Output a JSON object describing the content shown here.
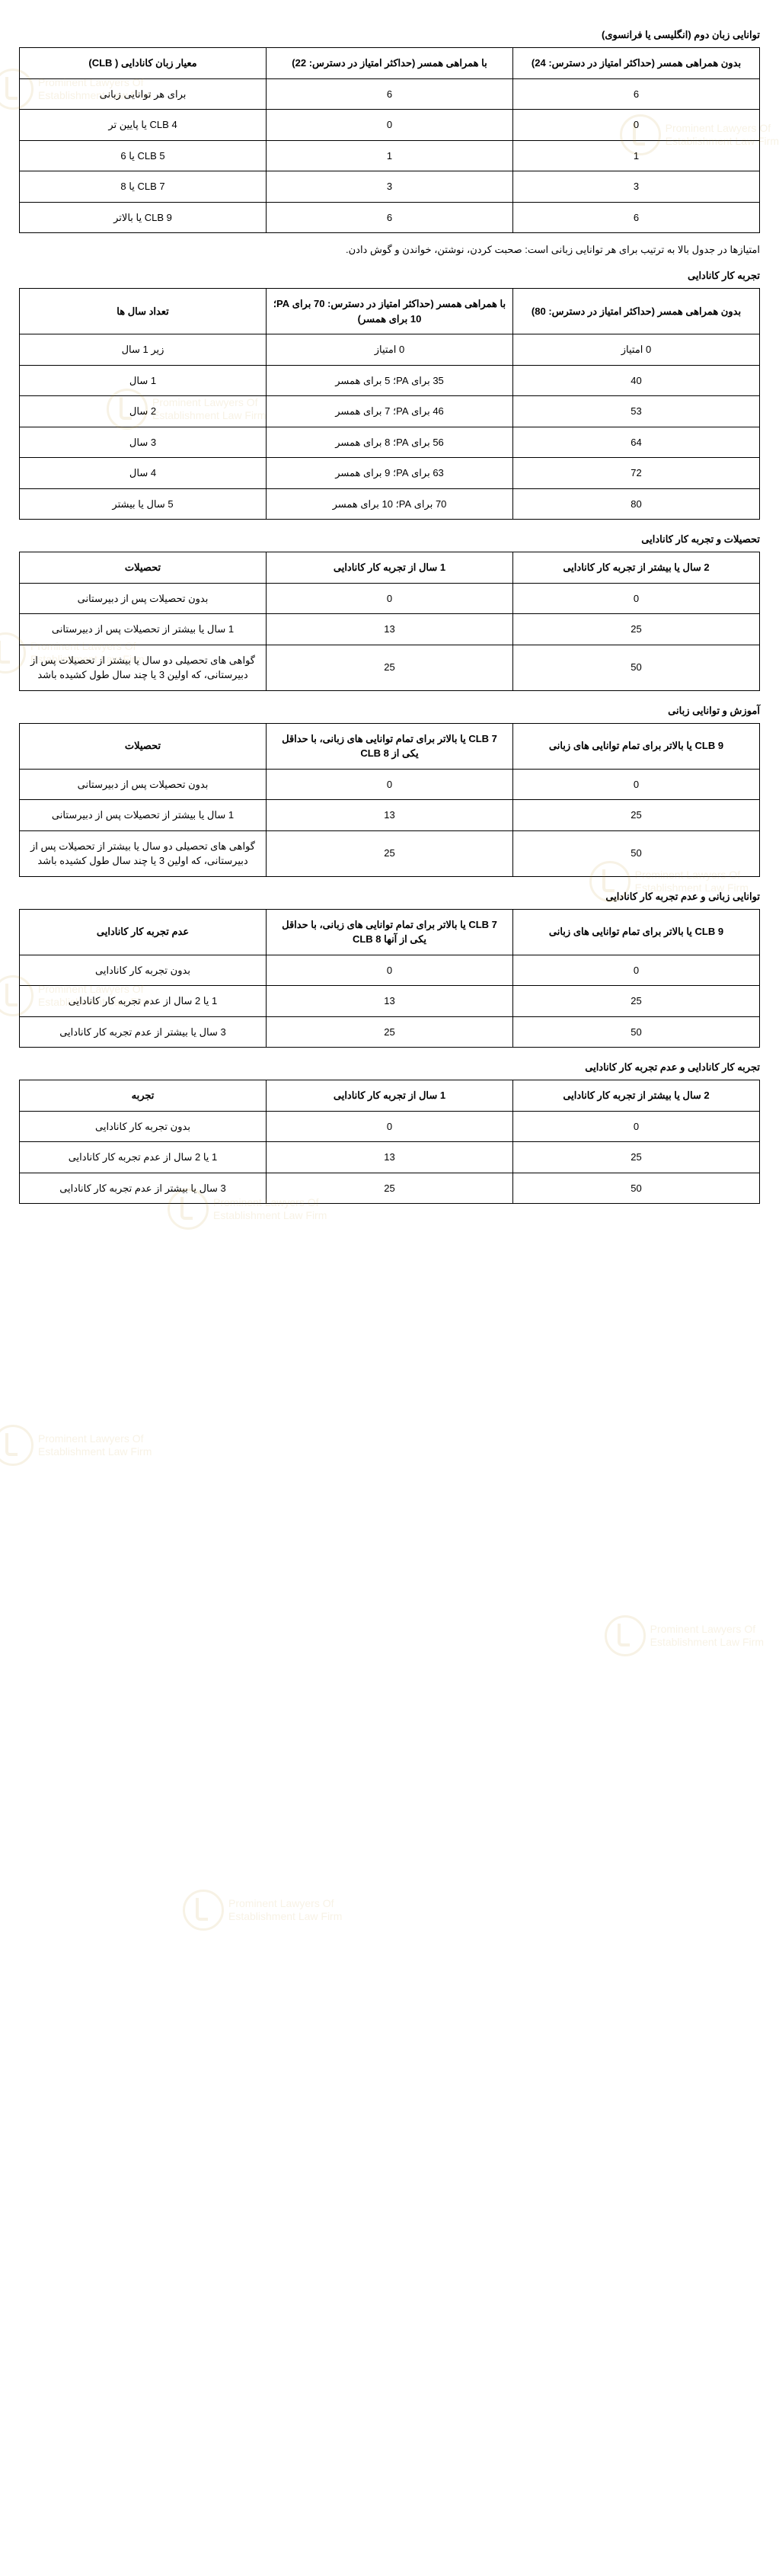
{
  "watermark": {
    "line1": "Prominent Lawyers Of",
    "line2": "Establishment Law Firm"
  },
  "table1": {
    "title": "توانایی زبان دوم (انگلیسی یا فرانسوی)",
    "headers": [
      "بدون همراهی همسر (حداکثر امتیاز در دسترس: 24)",
      "با همراهی همسر (حداکثر امتیاز در دسترس: 22)",
      "معیار زبان کانادایی ( CLB)"
    ],
    "rows": [
      [
        "6",
        "6",
        "برای هر توانایی زبانی"
      ],
      [
        "0",
        "0",
        "CLB 4 یا پایین تر"
      ],
      [
        "1",
        "1",
        "CLB 5 یا 6"
      ],
      [
        "3",
        "3",
        "CLB 7 یا 8"
      ],
      [
        "6",
        "6",
        "CLB 9 یا بالاتر"
      ]
    ]
  },
  "note1": "امتیازها در جدول بالا به ترتیب برای هر توانایی زبانی است: صحبت کردن، نوشتن، خواندن و گوش دادن.",
  "table2": {
    "title": "تجربه کار کانادایی",
    "headers": [
      "بدون همراهی همسر (حداکثر امتیاز در دسترس: 80)",
      "با همراهی همسر (حداکثر امتیاز در دسترس: 70 برای PA؛ 10 برای همسر)",
      "تعداد سال ها"
    ],
    "rows": [
      [
        "0 امتیاز",
        "0 امتیاز",
        "زیر 1 سال"
      ],
      [
        "40",
        "35 برای PA؛ 5 برای همسر",
        "1 سال"
      ],
      [
        "53",
        "46 برای PA؛ 7 برای همسر",
        "2 سال"
      ],
      [
        "64",
        "56 برای PA؛ 8 برای همسر",
        "3 سال"
      ],
      [
        "72",
        "63 برای PA؛ 9 برای همسر",
        "4 سال"
      ],
      [
        "80",
        "70 برای PA؛ 10 برای همسر",
        "5 سال یا بیشتر"
      ]
    ]
  },
  "table3": {
    "title": "تحصیلات و تجربه کار کانادایی",
    "headers": [
      "2 سال یا بیشتر از تجربه کار کانادایی",
      "1 سال از تجربه کار کانادایی",
      "تحصیلات"
    ],
    "rows": [
      [
        "0",
        "0",
        "بدون تحصیلات پس از دبیرستانی"
      ],
      [
        "25",
        "13",
        "1 سال یا بیشتر از تحصیلات پس از دبیرستانی"
      ],
      [
        "50",
        "25",
        "گواهی های تحصیلی دو سال یا بیشتر از تحصیلات پس از دبیرستانی، که اولین 3 یا چند سال طول کشیده باشد"
      ]
    ]
  },
  "table4": {
    "title": "آموزش و توانایی زبانی",
    "headers": [
      "CLB 9 یا بالاتر برای تمام توانایی های زبانی",
      "CLB 7 یا بالاتر برای تمام توانایی های زبانی، با حداقل یکی از CLB 8",
      "تحصیلات"
    ],
    "rows": [
      [
        "0",
        "0",
        "بدون تحصیلات پس از دبیرستانی"
      ],
      [
        "25",
        "13",
        "1 سال یا بیشتر از تحصیلات پس از دبیرستانی"
      ],
      [
        "50",
        "25",
        "گواهی های تحصیلی دو سال یا بیشتر از تحصیلات پس از دبیرستانی، که اولین 3 یا چند سال طول کشیده باشد"
      ]
    ]
  },
  "table5": {
    "title": "توانایی زبانی و عدم تجربه کار کانادایی",
    "headers": [
      "CLB 9 یا بالاتر برای تمام توانایی های زبانی",
      "CLB 7 یا بالاتر برای تمام توانایی های زبانی، با حداقل یکی از آنها CLB 8",
      "عدم تجربه کار کانادایی"
    ],
    "rows": [
      [
        "0",
        "0",
        "بدون تجربه کار کانادایی"
      ],
      [
        "25",
        "13",
        "1 یا 2 سال از عدم تجربه کار کانادایی"
      ],
      [
        "50",
        "25",
        "3 سال یا بیشتر از عدم تجربه کار کانادایی"
      ]
    ]
  },
  "table6": {
    "title": "تجربه کار کانادایی و عدم تجربه کار کانادایی",
    "headers": [
      "2 سال یا بیشتر از تجربه کار کانادایی",
      "1 سال از تجربه کار کانادایی",
      "تجربه"
    ],
    "rows": [
      [
        "0",
        "0",
        "بدون تجربه کار کانادایی"
      ],
      [
        "25",
        "13",
        "1 یا 2 سال از عدم تجربه کار کانادایی"
      ],
      [
        "50",
        "25",
        "3 سال یا بیشتر از عدم تجربه کار کانادایی"
      ]
    ]
  }
}
